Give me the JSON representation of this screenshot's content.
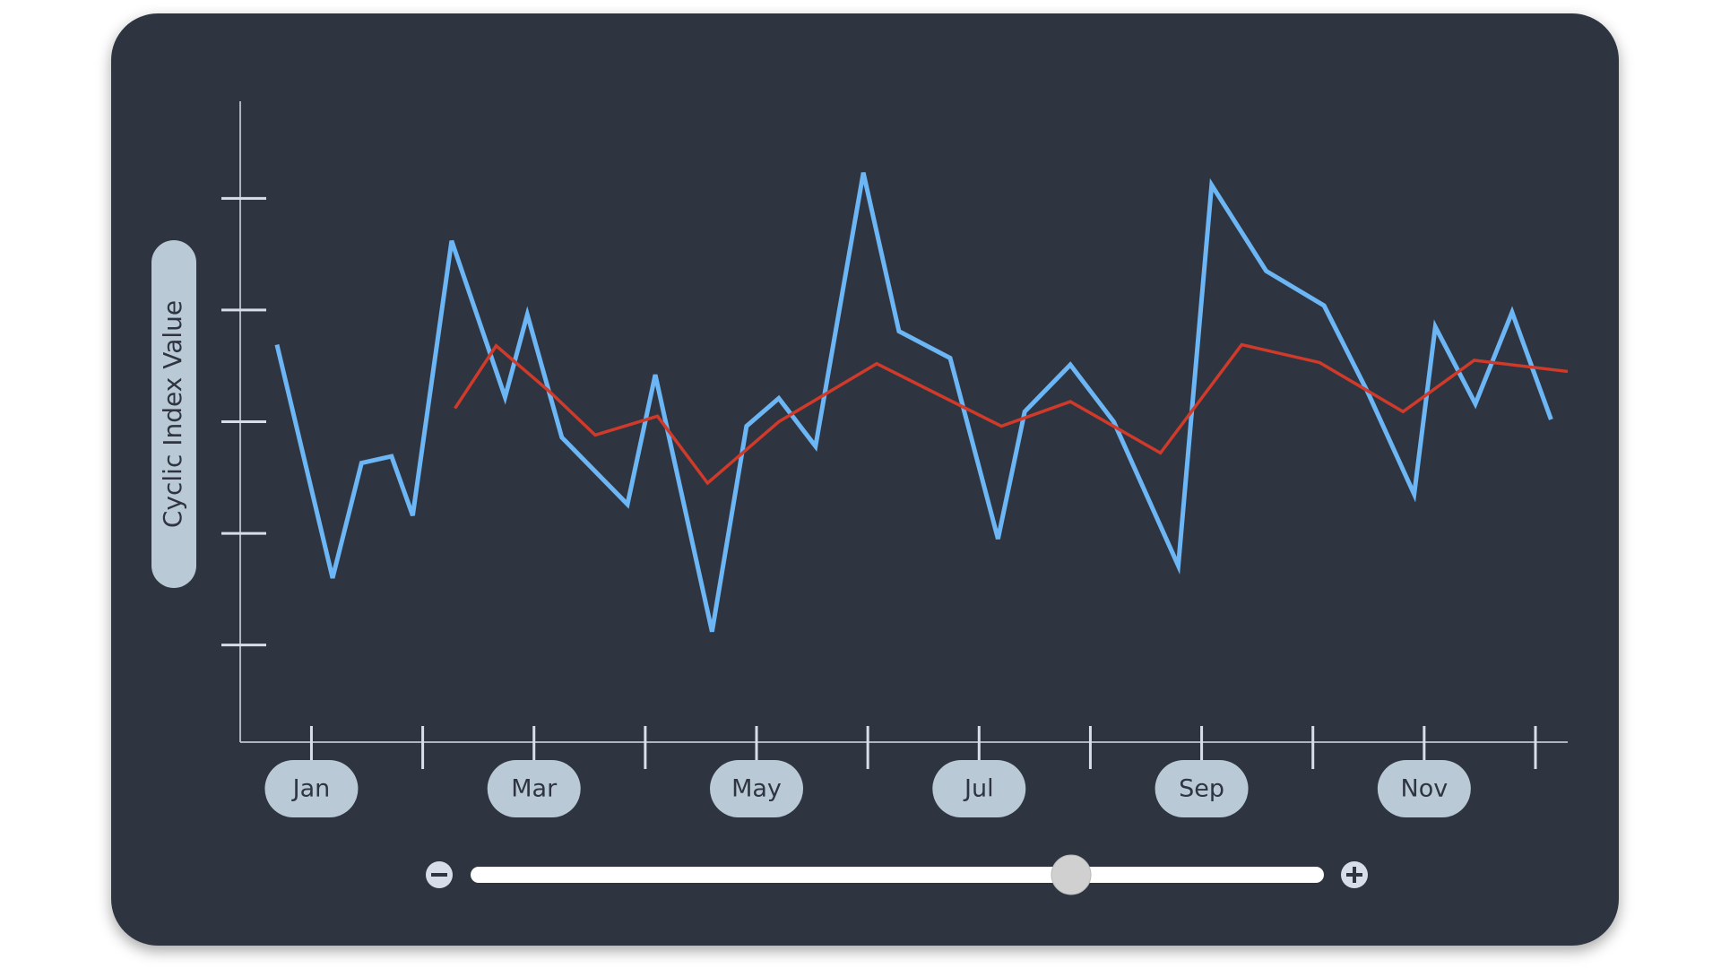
{
  "chart_data": {
    "type": "line",
    "y_label": "Cyclic Index Value",
    "xlim": [
      -0.64,
      11.29
    ],
    "xticks": [
      {
        "value": 0,
        "label": "Jan"
      },
      {
        "value": 1,
        "label": null
      },
      {
        "value": 2,
        "label": "Mar"
      },
      {
        "value": 3,
        "label": null
      },
      {
        "value": 4,
        "label": "May"
      },
      {
        "value": 5,
        "label": null
      },
      {
        "value": 6,
        "label": "Jul"
      },
      {
        "value": 7,
        "label": null
      },
      {
        "value": 8,
        "label": "Sep"
      },
      {
        "value": 9,
        "label": null
      },
      {
        "value": 10,
        "label": "Nov"
      },
      {
        "value": 11,
        "label": null
      }
    ],
    "ylim": [
      0.13,
      5.87
    ],
    "yticks": [
      1,
      2,
      3,
      4,
      5
    ],
    "series": [
      {
        "color": "#6cb6f5",
        "x": [
          -0.31,
          0.19,
          0.45,
          0.72,
          0.91,
          1.26,
          1.74,
          1.94,
          2.25,
          2.84,
          3.09,
          3.6,
          3.91,
          4.2,
          4.53,
          4.96,
          5.28,
          5.74,
          6.17,
          6.41,
          6.82,
          7.21,
          7.79,
          8.09,
          8.58,
          9.1,
          9.49,
          9.91,
          10.1,
          10.46,
          10.79,
          11.14
        ],
        "values": [
          3.69,
          1.6,
          2.63,
          2.69,
          2.16,
          4.62,
          3.22,
          3.96,
          2.86,
          2.26,
          3.42,
          1.12,
          2.96,
          3.21,
          2.78,
          5.23,
          3.81,
          3.57,
          1.95,
          3.09,
          3.51,
          3.0,
          1.71,
          5.12,
          4.35,
          4.04,
          3.27,
          2.35,
          3.85,
          3.16,
          3.98,
          3.02
        ]
      },
      {
        "color": "#d03a2a",
        "x": [
          1.29,
          1.66,
          2.14,
          2.55,
          3.11,
          3.56,
          4.2,
          5.08,
          6.2,
          6.82,
          7.63,
          8.36,
          9.06,
          9.81,
          10.45,
          11.29
        ],
        "values": [
          3.12,
          3.68,
          3.27,
          2.88,
          3.05,
          2.45,
          3.0,
          3.52,
          2.96,
          3.18,
          2.72,
          3.69,
          3.53,
          3.09,
          3.55,
          3.45
        ]
      }
    ]
  }
}
